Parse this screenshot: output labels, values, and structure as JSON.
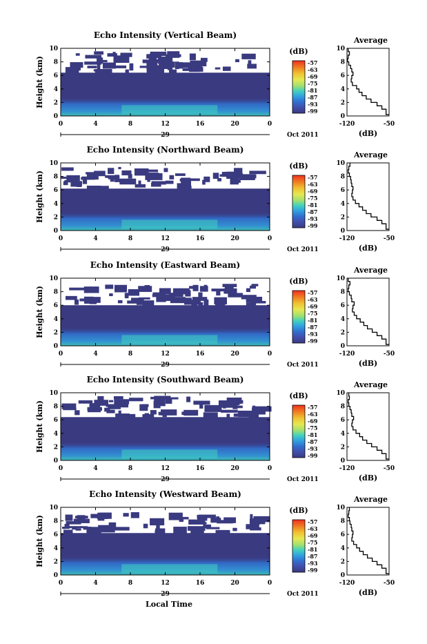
{
  "chart_data": [
    {
      "type": "heatmap",
      "title": "Echo Intensity (Vertical Beam)",
      "ylabel": "Height (km)",
      "ylim": [
        0,
        10
      ],
      "yticks": [
        "0",
        "2",
        "4",
        "6",
        "8",
        "10"
      ],
      "xlim": [
        0,
        24
      ],
      "xticks": [
        "0",
        "4",
        "8",
        "12",
        "16",
        "20",
        "0"
      ],
      "date_day": "29",
      "date_label": "Oct 2011",
      "colorbar_unit": "(dB)",
      "colorbar_ticks": [
        "-57",
        "-63",
        "-69",
        "-75",
        "-81",
        "-87",
        "-93",
        "-99"
      ],
      "echo_top_km": 6.4,
      "profile": {
        "title": "Average",
        "xlabel": "(dB)",
        "xlim": [
          -120,
          -50
        ],
        "xticks": [
          "-120",
          "-50"
        ],
        "ylim": [
          0,
          10
        ],
        "yticks": [
          "0",
          "2",
          "4",
          "6",
          "8",
          "10"
        ],
        "x": [
          -118,
          -116,
          -118,
          -119,
          -117,
          -114,
          -112,
          -110,
          -112,
          -113,
          -111,
          -104,
          -100,
          -95,
          -88,
          -80,
          -70,
          -62,
          -55,
          -50
        ],
        "y": [
          10,
          9.5,
          9,
          8.5,
          8,
          7.5,
          7,
          6.5,
          6,
          5.5,
          5,
          4.5,
          4,
          3.5,
          3,
          2.5,
          2,
          1.5,
          1,
          0.2
        ]
      }
    },
    {
      "type": "heatmap",
      "title": "Echo Intensity (Northward Beam)",
      "ylabel": "Height (km)",
      "ylim": [
        0,
        10
      ],
      "yticks": [
        "0",
        "2",
        "4",
        "6",
        "8",
        "10"
      ],
      "xlim": [
        0,
        24
      ],
      "xticks": [
        "0",
        "4",
        "8",
        "12",
        "16",
        "20",
        "0"
      ],
      "date_day": "29",
      "date_label": "Oct 2011",
      "colorbar_unit": "(dB)",
      "colorbar_ticks": [
        "-57",
        "-63",
        "-69",
        "-75",
        "-81",
        "-87",
        "-93",
        "-99"
      ],
      "echo_top_km": 6.2,
      "profile": {
        "title": "Average",
        "xlabel": "(dB)",
        "xlim": [
          -120,
          -50
        ],
        "xticks": [
          "-120",
          "-50"
        ],
        "ylim": [
          0,
          10
        ],
        "yticks": [
          "0",
          "2",
          "4",
          "6",
          "8",
          "10"
        ],
        "x": [
          -115,
          -117,
          -118,
          -116,
          -114,
          -113,
          -112,
          -110,
          -111,
          -112,
          -110,
          -106,
          -100,
          -94,
          -88,
          -80,
          -70,
          -62,
          -55,
          -50
        ],
        "y": [
          10,
          9.5,
          9,
          8.5,
          8,
          7.5,
          7,
          6.5,
          6,
          5.5,
          5,
          4.5,
          4,
          3.5,
          3,
          2.5,
          2,
          1.5,
          1,
          0.2
        ]
      }
    },
    {
      "type": "heatmap",
      "title": "Echo Intensity (Eastward Beam)",
      "ylabel": "Height (km)",
      "ylim": [
        0,
        10
      ],
      "yticks": [
        "0",
        "2",
        "4",
        "6",
        "8",
        "10"
      ],
      "xlim": [
        0,
        24
      ],
      "xticks": [
        "0",
        "4",
        "8",
        "12",
        "16",
        "20",
        "0"
      ],
      "date_day": "29",
      "date_label": "Oct 2011",
      "colorbar_unit": "(dB)",
      "colorbar_ticks": [
        "-57",
        "-63",
        "-69",
        "-75",
        "-81",
        "-87",
        "-93",
        "-99"
      ],
      "echo_top_km": 6.0,
      "profile": {
        "title": "Average",
        "xlabel": "(dB)",
        "xlim": [
          -120,
          -50
        ],
        "xticks": [
          "-120",
          "-50"
        ],
        "ylim": [
          0,
          10
        ],
        "yticks": [
          "0",
          "2",
          "4",
          "6",
          "8",
          "10"
        ],
        "x": [
          -118,
          -115,
          -117,
          -118,
          -116,
          -113,
          -112,
          -108,
          -110,
          -111,
          -108,
          -104,
          -98,
          -92,
          -86,
          -78,
          -70,
          -62,
          -55,
          -50
        ],
        "y": [
          10,
          9.5,
          9,
          8.5,
          8,
          7.5,
          7,
          6.5,
          6,
          5.5,
          5,
          4.5,
          4,
          3.5,
          3,
          2.5,
          2,
          1.5,
          1,
          0.2
        ]
      }
    },
    {
      "type": "heatmap",
      "title": "Echo Intensity (Southward Beam)",
      "ylabel": "Height (km)",
      "ylim": [
        0,
        10
      ],
      "yticks": [
        "0",
        "2",
        "4",
        "6",
        "8",
        "10"
      ],
      "xlim": [
        0,
        24
      ],
      "xticks": [
        "0",
        "4",
        "8",
        "12",
        "16",
        "20",
        "0"
      ],
      "date_day": "29",
      "date_label": "Oct 2011",
      "colorbar_unit": "(dB)",
      "colorbar_ticks": [
        "-57",
        "-63",
        "-69",
        "-75",
        "-81",
        "-87",
        "-93",
        "-99"
      ],
      "echo_top_km": 6.4,
      "profile": {
        "title": "Average",
        "xlabel": "(dB)",
        "xlim": [
          -120,
          -50
        ],
        "xticks": [
          "-120",
          "-50"
        ],
        "ylim": [
          0,
          10
        ],
        "yticks": [
          "0",
          "2",
          "4",
          "6",
          "8",
          "10"
        ],
        "x": [
          -117,
          -116,
          -118,
          -117,
          -115,
          -113,
          -112,
          -109,
          -111,
          -112,
          -110,
          -105,
          -99,
          -94,
          -87,
          -79,
          -70,
          -62,
          -55,
          -50
        ],
        "y": [
          10,
          9.5,
          9,
          8.5,
          8,
          7.5,
          7,
          6.5,
          6,
          5.5,
          5,
          4.5,
          4,
          3.5,
          3,
          2.5,
          2,
          1.5,
          1,
          0.2
        ]
      }
    },
    {
      "type": "heatmap",
      "title": "Echo Intensity (Westward Beam)",
      "ylabel": "Height (km)",
      "ylim": [
        0,
        10
      ],
      "yticks": [
        "0",
        "2",
        "4",
        "6",
        "8",
        "10"
      ],
      "xlim": [
        0,
        24
      ],
      "xticks": [
        "0",
        "4",
        "8",
        "12",
        "16",
        "20",
        "0"
      ],
      "date_day": "29",
      "date_label": "Oct 2011",
      "colorbar_unit": "(dB)",
      "colorbar_ticks": [
        "-57",
        "-63",
        "-69",
        "-75",
        "-81",
        "-87",
        "-93",
        "-99"
      ],
      "echo_top_km": 6.2,
      "profile": {
        "title": "Average",
        "xlabel": "(dB)",
        "xlim": [
          -120,
          -50
        ],
        "xticks": [
          "-120",
          "-50"
        ],
        "ylim": [
          0,
          10
        ],
        "yticks": [
          "0",
          "2",
          "4",
          "6",
          "8",
          "10"
        ],
        "x": [
          -116,
          -117,
          -118,
          -116,
          -115,
          -113,
          -112,
          -110,
          -111,
          -112,
          -109,
          -104,
          -99,
          -93,
          -86,
          -78,
          -70,
          -62,
          -55,
          -50
        ],
        "y": [
          10,
          9.5,
          9,
          8.5,
          8,
          7.5,
          7,
          6.5,
          6,
          5.5,
          5,
          4.5,
          4,
          3.5,
          3,
          2.5,
          2,
          1.5,
          1,
          0.2
        ]
      }
    }
  ],
  "xlabel": "Local Time",
  "colors": {
    "background_echo": "#3a3a80",
    "scale": [
      "#f03020",
      "#f07a20",
      "#f0c030",
      "#e8e850",
      "#a0e070",
      "#40d0c0",
      "#30a0e0",
      "#3070d0",
      "#4050b0",
      "#3a3a80"
    ]
  }
}
